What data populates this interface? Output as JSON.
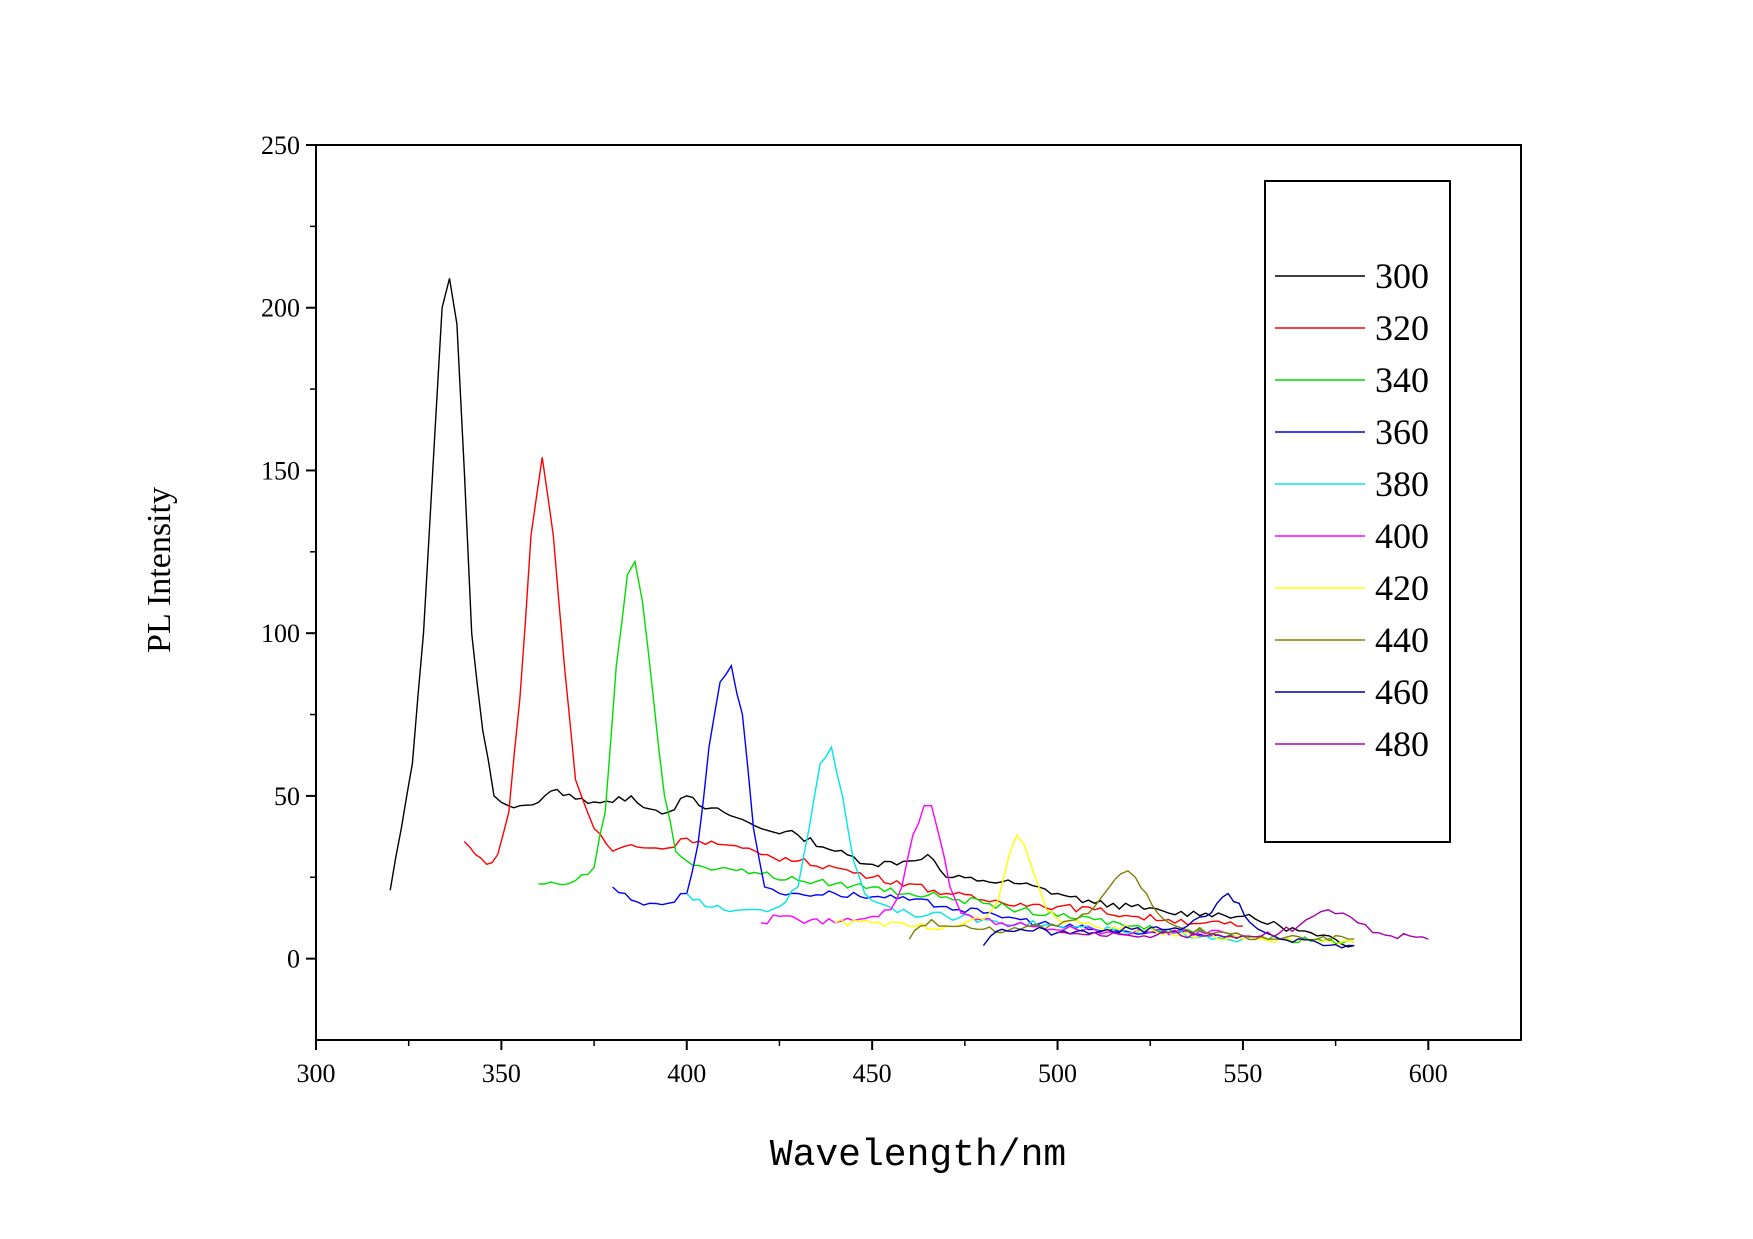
{
  "chart_data": {
    "type": "line",
    "xlabel": "Wavelength/nm",
    "ylabel": "PL Intensity",
    "xlim": [
      300,
      625
    ],
    "ylim": [
      -25,
      250
    ],
    "xticks": [
      300,
      350,
      400,
      450,
      500,
      550,
      600
    ],
    "yticks": [
      0,
      50,
      100,
      150,
      200,
      250
    ],
    "grid": false,
    "legend_position": "top-right",
    "series": [
      {
        "name": "300",
        "color": "#000000",
        "x": [
          320,
          323,
          326,
          329,
          332,
          334,
          336,
          338,
          340,
          342,
          345,
          348,
          350,
          355,
          360,
          365,
          370,
          380,
          385,
          390,
          395,
          400,
          405,
          410,
          420,
          430,
          440,
          450,
          460,
          465,
          470,
          480,
          490,
          500,
          510,
          520,
          530,
          540,
          550,
          560,
          570,
          580
        ],
        "y": [
          21,
          40,
          60,
          100,
          160,
          200,
          209,
          195,
          150,
          100,
          70,
          50,
          48,
          47,
          48,
          52,
          49,
          48,
          50,
          46,
          45,
          50,
          46,
          45,
          40,
          38,
          33,
          29,
          30,
          32,
          25,
          24,
          23,
          20,
          17,
          16,
          14,
          14,
          13,
          10,
          7,
          4
        ]
      },
      {
        "name": "320",
        "color": "#ff0000",
        "x": [
          340,
          343,
          346,
          349,
          352,
          355,
          358,
          361,
          364,
          367,
          370,
          375,
          380,
          385,
          390,
          395,
          400,
          410,
          420,
          430,
          440,
          450,
          460,
          470,
          480,
          490,
          500,
          510,
          520,
          530,
          540,
          550
        ],
        "y": [
          36,
          32,
          29,
          32,
          45,
          80,
          130,
          154,
          130,
          90,
          55,
          40,
          33,
          35,
          34,
          34,
          37,
          35,
          32,
          30,
          28,
          25,
          23,
          20,
          18,
          17,
          16,
          15,
          13,
          12,
          11,
          10
        ]
      },
      {
        "name": "340",
        "color": "#00dd00",
        "x": [
          360,
          365,
          370,
          375,
          378,
          381,
          384,
          386,
          388,
          391,
          394,
          397,
          400,
          405,
          410,
          420,
          430,
          440,
          450,
          460,
          470,
          480,
          490,
          500,
          510,
          520,
          530,
          540,
          550,
          560,
          570,
          580
        ],
        "y": [
          23,
          23,
          24,
          28,
          45,
          90,
          118,
          122,
          110,
          80,
          50,
          33,
          30,
          28,
          28,
          26,
          24,
          23,
          22,
          20,
          19,
          17,
          15,
          13,
          12,
          10,
          9,
          8,
          7,
          6,
          6,
          5
        ]
      },
      {
        "name": "360",
        "color": "#0000ff",
        "x": [
          380,
          385,
          390,
          395,
          400,
          403,
          406,
          409,
          412,
          415,
          418,
          421,
          425,
          430,
          440,
          450,
          460,
          470,
          480,
          490,
          500,
          510,
          520,
          530,
          540,
          550
        ],
        "y": [
          22,
          18,
          17,
          17,
          20,
          35,
          65,
          85,
          90,
          75,
          40,
          22,
          20,
          20,
          20,
          19,
          18,
          16,
          14,
          12,
          10,
          9,
          8,
          8,
          7,
          7
        ]
      },
      {
        "name": "380",
        "color": "#00e5e5",
        "x": [
          400,
          405,
          410,
          415,
          420,
          425,
          430,
          433,
          436,
          439,
          442,
          445,
          448,
          452,
          460,
          470,
          480,
          490,
          500,
          510,
          520,
          530,
          540,
          550
        ],
        "y": [
          20,
          16,
          15,
          15,
          15,
          16,
          22,
          40,
          60,
          65,
          50,
          30,
          20,
          17,
          14,
          13,
          12,
          11,
          10,
          9,
          8,
          8,
          7,
          6
        ]
      },
      {
        "name": "400",
        "color": "#ff00ff",
        "x": [
          420,
          425,
          430,
          440,
          450,
          455,
          458,
          461,
          464,
          466,
          468,
          471,
          474,
          478,
          485,
          495,
          505,
          515,
          525,
          535,
          545,
          550
        ],
        "y": [
          11,
          13,
          12,
          11,
          13,
          15,
          22,
          38,
          47,
          47,
          38,
          22,
          14,
          12,
          11,
          10,
          9,
          8,
          8,
          8,
          8,
          7
        ]
      },
      {
        "name": "420",
        "color": "#ffff00",
        "x": [
          440,
          450,
          460,
          470,
          475,
          480,
          484,
          487,
          489,
          491,
          494,
          497,
          500,
          510,
          520,
          530,
          540,
          550,
          560,
          570,
          580
        ],
        "y": [
          11,
          11,
          10,
          10,
          11,
          12,
          18,
          32,
          38,
          35,
          25,
          15,
          12,
          10,
          9,
          8,
          7,
          6,
          6,
          5,
          5
        ]
      },
      {
        "name": "440",
        "color": "#808000",
        "x": [
          460,
          463,
          466,
          470,
          480,
          490,
          500,
          505,
          510,
          514,
          517,
          519,
          521,
          524,
          527,
          530,
          540,
          550,
          560,
          570,
          580
        ],
        "y": [
          6,
          10,
          12,
          10,
          9,
          9,
          10,
          12,
          16,
          22,
          26,
          27,
          25,
          20,
          14,
          11,
          8,
          7,
          6,
          6,
          6
        ]
      },
      {
        "name": "460",
        "color": "#0000aa",
        "x": [
          480,
          482,
          485,
          490,
          500,
          510,
          520,
          530,
          535,
          540,
          543,
          546,
          549,
          552,
          556,
          560,
          570,
          580
        ],
        "y": [
          4,
          7,
          9,
          9,
          8,
          8,
          9,
          9,
          10,
          13,
          17,
          20,
          17,
          11,
          8,
          6,
          5,
          4
        ]
      },
      {
        "name": "480",
        "color": "#aa00aa",
        "x": [
          500,
          510,
          520,
          530,
          540,
          550,
          555,
          560,
          565,
          569,
          573,
          577,
          581,
          585,
          590,
          595,
          600
        ],
        "y": [
          8,
          8,
          7,
          8,
          7,
          7,
          7,
          8,
          10,
          13,
          15,
          14,
          11,
          8,
          7,
          7,
          6
        ]
      }
    ]
  }
}
